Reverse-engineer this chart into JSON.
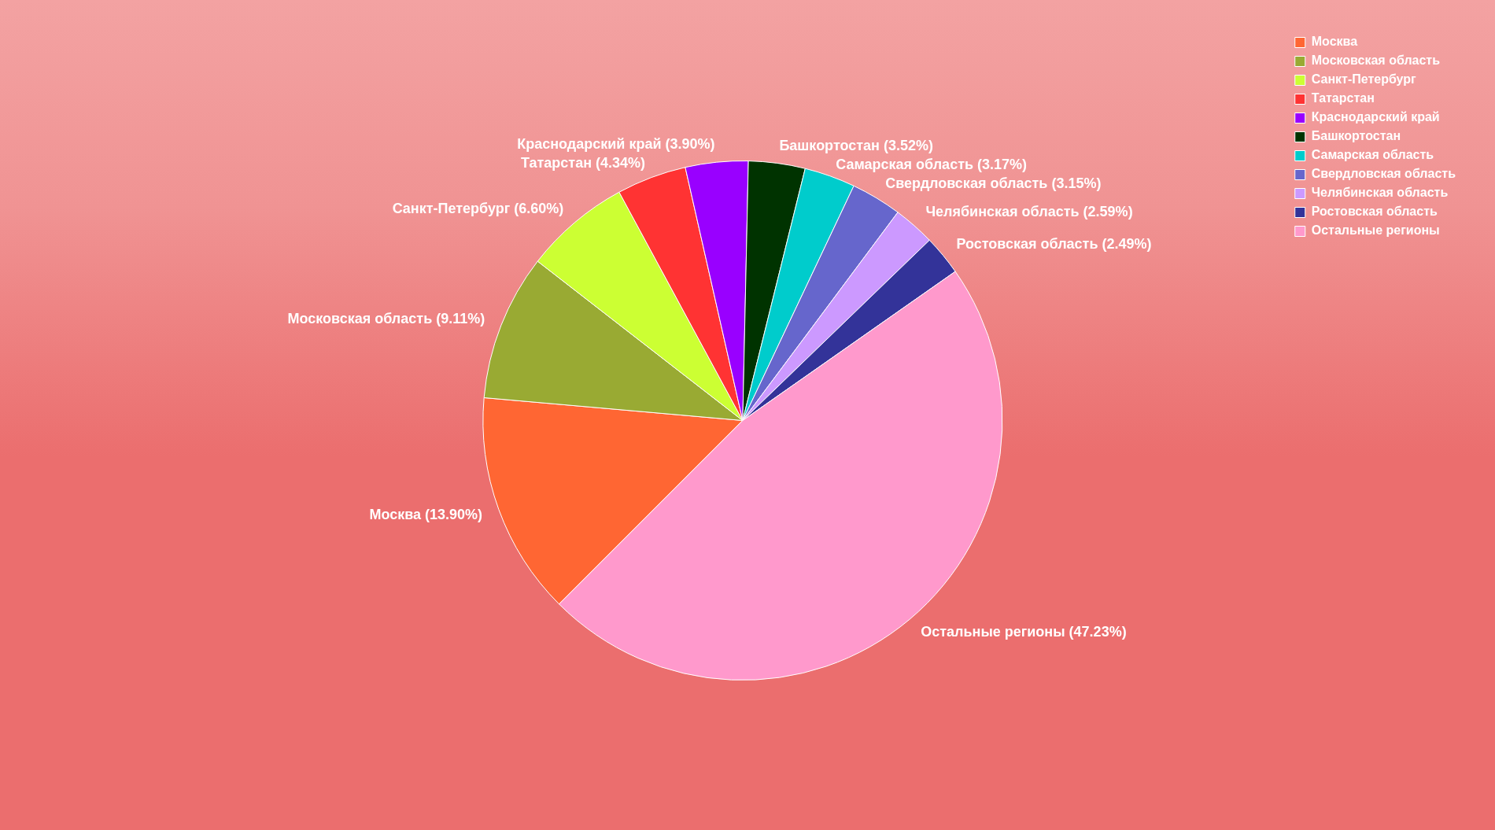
{
  "chart_data": {
    "type": "pie",
    "categories": [
      "Москва",
      "Московская область",
      "Санкт-Петербург",
      "Татарстан",
      "Краснодарский край",
      "Башкортостан",
      "Самарская область",
      "Свердловская область",
      "Челябинская область",
      "Ростовская область",
      "Остальные регионы"
    ],
    "values": [
      13.9,
      9.11,
      6.6,
      4.34,
      3.9,
      3.52,
      3.17,
      3.15,
      2.59,
      2.49,
      47.23
    ],
    "colors": [
      "#ff6633",
      "#99aa33",
      "#ccff33",
      "#ff3333",
      "#9900ff",
      "#003300",
      "#00cccc",
      "#6666cc",
      "#cc99ff",
      "#333399",
      "#ff99cc"
    ],
    "value_labels": [
      "Москва (13.90%)",
      "Московская область (9.11%)",
      "Санкт-Петербург (6.60%)",
      "Татарстан (4.34%)",
      "Краснодарский край (3.90%)",
      "Башкортостан (3.52%)",
      "Самарская область (3.17%)",
      "Свердловская область (3.15%)",
      "Челябинская область (2.59%)",
      "Ростовская область (2.49%)",
      "Остальные регионы (47.23%)"
    ],
    "legend": "top right"
  }
}
